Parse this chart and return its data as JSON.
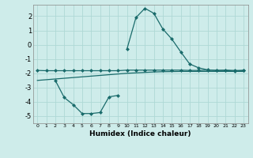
{
  "bg_color": "#ceecea",
  "grid_color": "#aed8d5",
  "line_color": "#1a6b6b",
  "xlabel": "Humidex (Indice chaleur)",
  "xlim": [
    -0.5,
    23.5
  ],
  "ylim": [
    -5.5,
    2.8
  ],
  "yticks": [
    -5,
    -4,
    -3,
    -2,
    -1,
    0,
    1,
    2
  ],
  "xticks": [
    0,
    1,
    2,
    3,
    4,
    5,
    6,
    7,
    8,
    9,
    10,
    11,
    12,
    13,
    14,
    15,
    16,
    17,
    18,
    19,
    20,
    21,
    22,
    23
  ],
  "line1_x": [
    0,
    1,
    2,
    3,
    4,
    5,
    6,
    7,
    8,
    9,
    10,
    11,
    12,
    13,
    14,
    15,
    16,
    17,
    18,
    19,
    20,
    21,
    22,
    23
  ],
  "line1_y": [
    -1.8,
    -1.82,
    -1.82,
    -1.82,
    -1.82,
    -1.82,
    -1.82,
    -1.82,
    -1.82,
    -1.82,
    -1.78,
    -1.78,
    -1.78,
    -1.78,
    -1.78,
    -1.78,
    -1.78,
    -1.8,
    -1.8,
    -1.78,
    -1.8,
    -1.78,
    -1.8,
    -1.8
  ],
  "line2_x": [
    0,
    1,
    2,
    3,
    4,
    5,
    6,
    7,
    8,
    9,
    10,
    11,
    12,
    13,
    14,
    15,
    16,
    17,
    18,
    19,
    20,
    21,
    22,
    23
  ],
  "line2_y": [
    -2.5,
    -2.45,
    -2.4,
    -2.35,
    -2.3,
    -2.25,
    -2.2,
    -2.15,
    -2.1,
    -2.05,
    -2.0,
    -1.97,
    -1.94,
    -1.91,
    -1.89,
    -1.88,
    -1.87,
    -1.87,
    -1.87,
    -1.87,
    -1.87,
    -1.87,
    -1.87,
    -1.87
  ],
  "line3_x": [
    10,
    11,
    12,
    13,
    14,
    15,
    16,
    17,
    18,
    19,
    20,
    21,
    22,
    23
  ],
  "line3_y": [
    -0.3,
    1.9,
    2.55,
    2.2,
    1.1,
    0.4,
    -0.5,
    -1.35,
    -1.62,
    -1.76,
    -1.8,
    -1.8,
    -1.85,
    -1.8
  ],
  "line4_x": [
    2,
    3,
    4,
    5,
    6,
    7,
    8,
    9
  ],
  "line4_y": [
    -2.5,
    -3.7,
    -4.2,
    -4.82,
    -4.82,
    -4.75,
    -3.65,
    -3.55
  ]
}
